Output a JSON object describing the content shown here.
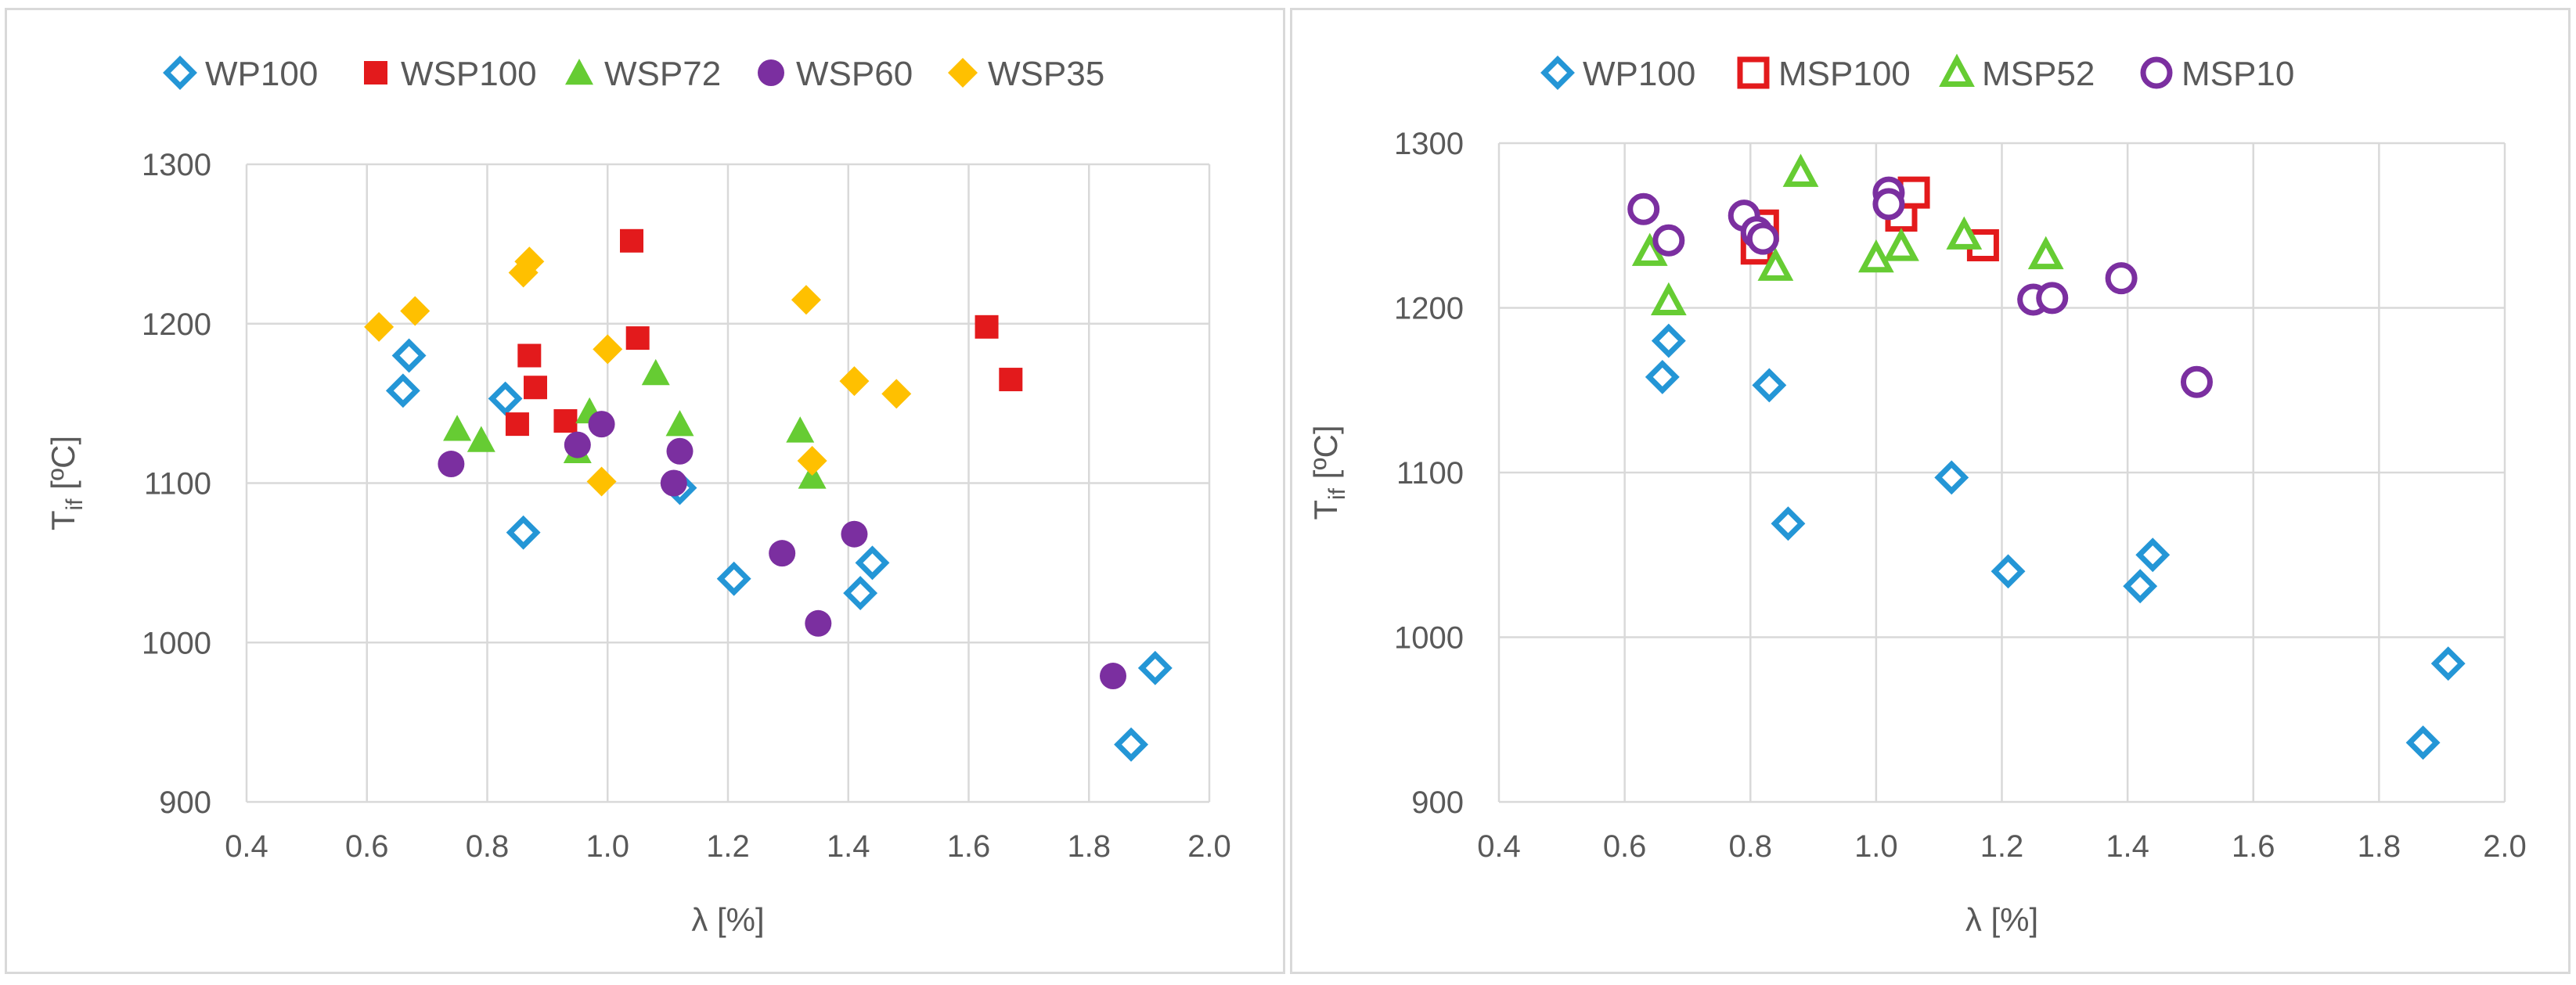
{
  "chart_data": [
    {
      "type": "scatter",
      "title": "",
      "xlabel": "λ [%]",
      "ylabel": "T",
      "ylabel_sub": "if",
      "ylabel_unit": " [ºC]",
      "xlim": [
        0.4,
        2.0
      ],
      "ylim": [
        900,
        1300
      ],
      "xticks": [
        "0.4",
        "0.6",
        "0.8",
        "1.0",
        "1.2",
        "1.4",
        "1.6",
        "1.8",
        "2.0"
      ],
      "yticks": [
        "900",
        "1000",
        "1100",
        "1200",
        "1300"
      ],
      "grid": true,
      "legend_position": "top",
      "series": [
        {
          "name": "WP100",
          "marker": "diamond-open",
          "color": "#2496d6",
          "x": [
            0.66,
            0.67,
            0.83,
            0.86,
            1.12,
            1.21,
            1.42,
            1.44,
            1.87,
            1.91
          ],
          "y": [
            1158,
            1180,
            1153,
            1069,
            1097,
            1040,
            1031,
            1050,
            936,
            984
          ]
        },
        {
          "name": "WSP100",
          "marker": "square-filled",
          "color": "#e31a1c",
          "x": [
            0.85,
            0.87,
            0.88,
            0.93,
            1.04,
            1.05,
            1.63,
            1.67
          ],
          "y": [
            1137,
            1180,
            1160,
            1139,
            1252,
            1191,
            1198,
            1165
          ]
        },
        {
          "name": "WSP72",
          "marker": "triangle-filled",
          "color": "#66cc33",
          "x": [
            0.75,
            0.79,
            0.95,
            0.97,
            1.08,
            1.12,
            1.32,
            1.34
          ],
          "y": [
            1134,
            1127,
            1120,
            1145,
            1169,
            1137,
            1133,
            1104
          ]
        },
        {
          "name": "WSP60",
          "marker": "circle-filled",
          "color": "#7b2fa0",
          "x": [
            0.74,
            0.95,
            0.99,
            1.11,
            1.12,
            1.29,
            1.35,
            1.41,
            1.84
          ],
          "y": [
            1112,
            1124,
            1137,
            1100,
            1120,
            1056,
            1012,
            1068,
            979
          ]
        },
        {
          "name": "WSP35",
          "marker": "diamond-filled",
          "color": "#ffc000",
          "x": [
            0.62,
            0.68,
            0.86,
            0.87,
            0.99,
            1.0,
            1.33,
            1.34,
            1.41,
            1.48
          ],
          "y": [
            1198,
            1208,
            1232,
            1239,
            1101,
            1184,
            1215,
            1114,
            1164,
            1156
          ]
        }
      ]
    },
    {
      "type": "scatter",
      "title": "",
      "xlabel": "λ [%]",
      "ylabel": "T",
      "ylabel_sub": "if",
      "ylabel_unit": " [ºC]",
      "xlim": [
        0.4,
        2.0
      ],
      "ylim": [
        900,
        1300
      ],
      "xticks": [
        "0.4",
        "0.6",
        "0.8",
        "1.0",
        "1.2",
        "1.4",
        "1.6",
        "1.8",
        "2.0"
      ],
      "yticks": [
        "900",
        "1000",
        "1100",
        "1200",
        "1300"
      ],
      "grid": true,
      "legend_position": "top",
      "series": [
        {
          "name": "WP100",
          "marker": "diamond-open",
          "color": "#2496d6",
          "x": [
            0.66,
            0.67,
            0.83,
            0.86,
            1.12,
            1.21,
            1.42,
            1.44,
            1.87,
            1.91
          ],
          "y": [
            1158,
            1180,
            1153,
            1069,
            1097,
            1040,
            1031,
            1050,
            936,
            984
          ]
        },
        {
          "name": "MSP100",
          "marker": "square-open",
          "color": "#e31a1c",
          "x": [
            0.81,
            0.82,
            1.04,
            1.06,
            1.17
          ],
          "y": [
            1236,
            1250,
            1256,
            1270,
            1238
          ]
        },
        {
          "name": "MSP52",
          "marker": "triangle-open",
          "color": "#66cc33",
          "x": [
            0.64,
            0.67,
            0.84,
            0.88,
            1.0,
            1.04,
            1.14,
            1.27
          ],
          "y": [
            1234,
            1204,
            1225,
            1282,
            1230,
            1237,
            1244,
            1232
          ]
        },
        {
          "name": "MSP10",
          "marker": "circle-open",
          "color": "#7b2fa0",
          "x": [
            0.63,
            0.67,
            0.79,
            0.81,
            0.82,
            1.02,
            1.02,
            1.25,
            1.28,
            1.39,
            1.51
          ],
          "y": [
            1260,
            1241,
            1256,
            1246,
            1242,
            1270,
            1263,
            1205,
            1206,
            1218,
            1155
          ]
        }
      ]
    }
  ]
}
